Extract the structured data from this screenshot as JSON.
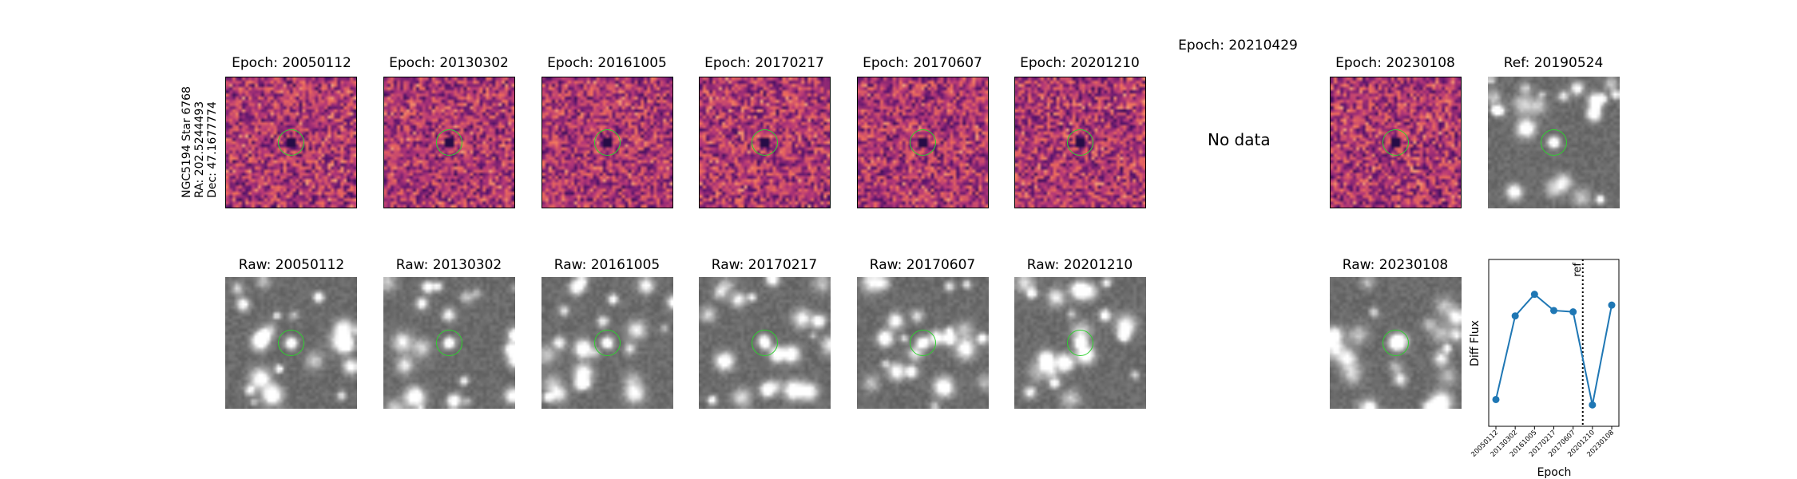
{
  "star_label": {
    "line1": "NGC5194 Star 6768",
    "line2": "RA: 202.5244493",
    "line3": "Dec: 47.1677774"
  },
  "diff_row": [
    {
      "title": "Epoch: 20050112",
      "kind": "diff",
      "seed": 11
    },
    {
      "title": "Epoch: 20130302",
      "kind": "diff",
      "seed": 23
    },
    {
      "title": "Epoch: 20161005",
      "kind": "diff",
      "seed": 37
    },
    {
      "title": "Epoch: 20170217",
      "kind": "diff",
      "seed": 41
    },
    {
      "title": "Epoch: 20170607",
      "kind": "diff",
      "seed": 53
    },
    {
      "title": "Epoch: 20201210",
      "kind": "diff",
      "seed": 67
    },
    {
      "title": "Epoch: 20210429",
      "kind": "nodata",
      "nodata_text": "No data"
    },
    {
      "title": "Epoch: 20230108",
      "kind": "diff",
      "seed": 79
    },
    {
      "title": "Ref: 20190524",
      "kind": "raw",
      "seed": 97
    }
  ],
  "raw_row": [
    {
      "title": "Raw: 20050112",
      "seed": 101
    },
    {
      "title": "Raw: 20130302",
      "seed": 113
    },
    {
      "title": "Raw: 20161005",
      "seed": 127
    },
    {
      "title": "Raw: 20170217",
      "seed": 131
    },
    {
      "title": "Raw: 20170607",
      "seed": 137
    },
    {
      "title": "Raw: 20201210",
      "seed": 149
    },
    {
      "title": "Raw: 20230108",
      "seed": 151
    }
  ],
  "colors": {
    "series": "#1f77b4",
    "circle": "#2fd02f"
  },
  "chart_data": {
    "type": "line",
    "xlabel": "Epoch",
    "ylabel": "Diff Flux",
    "x": [
      "20050112",
      "20130302",
      "20161005",
      "20170217",
      "20170607",
      "20201210",
      "20230108"
    ],
    "series": [
      {
        "values": [
          0.08,
          0.7,
          0.86,
          0.74,
          0.73,
          0.04,
          0.78
        ]
      }
    ],
    "ref_line": {
      "label": "ref",
      "position_between": [
        "20170607",
        "20201210"
      ],
      "style": "dotted"
    },
    "ylim": [
      0,
      1
    ],
    "y_ticks": "none",
    "grid": false
  }
}
